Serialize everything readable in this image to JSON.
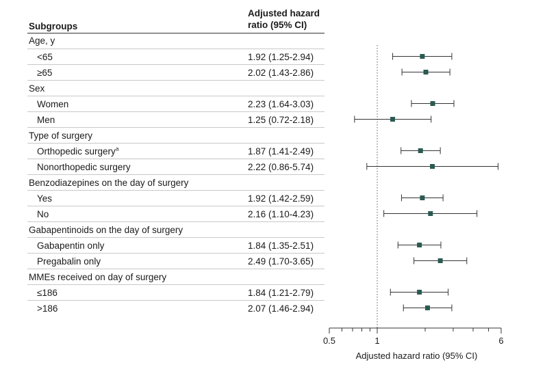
{
  "header": {
    "subgroups": "Subgroups",
    "hr_line1": "Adjusted hazard",
    "hr_line2": "ratio (95% CI)"
  },
  "rows": [
    {
      "label": "Age, y",
      "type": "group"
    },
    {
      "label": "<65",
      "type": "sub",
      "ci_text": "1.92 (1.25-2.94)"
    },
    {
      "label": "≥65",
      "type": "sub",
      "ci_text": "2.02 (1.43-2.86)"
    },
    {
      "label": "Sex",
      "type": "group"
    },
    {
      "label": "Women",
      "type": "sub",
      "ci_text": "2.23 (1.64-3.03)"
    },
    {
      "label": "Men",
      "type": "sub",
      "ci_text": "1.25 (0.72-2.18)"
    },
    {
      "label": "Type of surgery",
      "type": "group"
    },
    {
      "label": "Orthopedic surgery",
      "sup": "a",
      "type": "sub",
      "ci_text": "1.87 (1.41-2.49)"
    },
    {
      "label": "Nonorthopedic surgery",
      "type": "sub",
      "ci_text": "2.22 (0.86-5.74)"
    },
    {
      "label": "Benzodiazepines on the day of surgery",
      "type": "group"
    },
    {
      "label": "Yes",
      "type": "sub",
      "ci_text": "1.92 (1.42-2.59)"
    },
    {
      "label": "No",
      "type": "sub",
      "ci_text": "2.16 (1.10-4.23)"
    },
    {
      "label": "Gabapentinoids on the day of surgery",
      "type": "group"
    },
    {
      "label": "Gabapentin only",
      "type": "sub",
      "ci_text": "1.84 (1.35-2.51)"
    },
    {
      "label": "Pregabalin only",
      "type": "sub",
      "ci_text": "2.49 (1.70-3.65)"
    },
    {
      "label": "MMEs received on day of surgery",
      "type": "group"
    },
    {
      "label": "≤186",
      "type": "sub",
      "ci_text": "1.84 (1.21-2.79)"
    },
    {
      "label": ">186",
      "type": "sub",
      "ci_text": "2.07 (1.46-2.94)"
    }
  ],
  "chart_data": {
    "type": "forest",
    "scale": "log",
    "xlabel": "Adjusted hazard ratio (95% CI)",
    "xlim": [
      0.5,
      6
    ],
    "major_ticks": [
      0.5,
      1,
      6
    ],
    "minor_ticks": [
      0.6,
      0.7,
      0.8,
      0.9,
      2,
      3,
      4,
      5
    ],
    "reference_line": 1,
    "marker_color": "#2a5a52",
    "points": [
      {
        "label": "<65",
        "hr": 1.92,
        "lo": 1.25,
        "hi": 2.94
      },
      {
        "label": "≥65",
        "hr": 2.02,
        "lo": 1.43,
        "hi": 2.86
      },
      {
        "label": "Women",
        "hr": 2.23,
        "lo": 1.64,
        "hi": 3.03
      },
      {
        "label": "Men",
        "hr": 1.25,
        "lo": 0.72,
        "hi": 2.18
      },
      {
        "label": "Orthopedic surgery",
        "hr": 1.87,
        "lo": 1.41,
        "hi": 2.49
      },
      {
        "label": "Nonorthopedic surgery",
        "hr": 2.22,
        "lo": 0.86,
        "hi": 5.74
      },
      {
        "label": "Benzodiazepines: Yes",
        "hr": 1.92,
        "lo": 1.42,
        "hi": 2.59
      },
      {
        "label": "Benzodiazepines: No",
        "hr": 2.16,
        "lo": 1.1,
        "hi": 4.23
      },
      {
        "label": "Gabapentin only",
        "hr": 1.84,
        "lo": 1.35,
        "hi": 2.51
      },
      {
        "label": "Pregabalin only",
        "hr": 2.49,
        "lo": 1.7,
        "hi": 3.65
      },
      {
        "label": "≤186",
        "hr": 1.84,
        "lo": 1.21,
        "hi": 2.79
      },
      {
        "label": ">186",
        "hr": 2.07,
        "lo": 1.46,
        "hi": 2.94
      }
    ]
  }
}
